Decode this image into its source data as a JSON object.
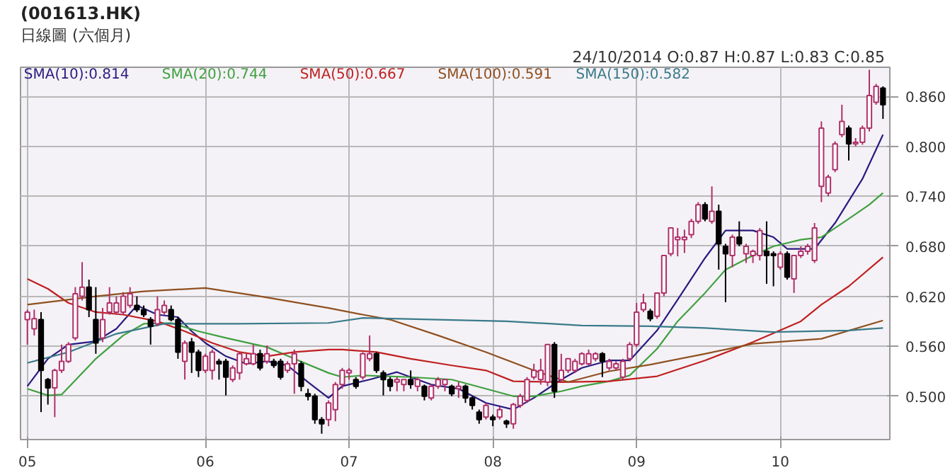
{
  "chart_data": {
    "type": "candlestick",
    "title": "(001613.HK)",
    "subtitle": "日線圖 (六個月)",
    "annotations": [
      "24/10/2014  O:0.87 H:0.87 L:0.83 C:0.85"
    ],
    "categories": [
      "05",
      null,
      null,
      null,
      null,
      null,
      null,
      null,
      null,
      null,
      null,
      null,
      null,
      null,
      null,
      null,
      null,
      null,
      null,
      null,
      null,
      null,
      null,
      null,
      null,
      null,
      "06",
      null,
      null,
      null,
      null,
      null,
      null,
      null,
      null,
      null,
      null,
      null,
      null,
      null,
      null,
      null,
      null,
      null,
      null,
      null,
      null,
      "07",
      null,
      null,
      null,
      null,
      null,
      null,
      null,
      null,
      null,
      null,
      null,
      null,
      null,
      null,
      null,
      null,
      null,
      null,
      null,
      null,
      "08",
      null,
      null,
      null,
      null,
      null,
      null,
      null,
      null,
      null,
      null,
      null,
      null,
      null,
      null,
      null,
      null,
      null,
      null,
      null,
      null,
      "09",
      null,
      null,
      null,
      null,
      null,
      null,
      null,
      null,
      null,
      null,
      null,
      null,
      null,
      null,
      null,
      null,
      null,
      null,
      null,
      null,
      "10",
      null,
      null,
      null,
      null,
      null,
      null,
      null,
      null,
      null,
      null,
      null,
      null,
      null,
      null,
      null
    ],
    "ohlc": [
      [
        0.592,
        0.604,
        0.562,
        0.601
      ],
      [
        0.581,
        0.604,
        0.573,
        0.593
      ],
      [
        0.592,
        0.601,
        0.481,
        0.531
      ],
      [
        0.52,
        0.522,
        0.49,
        0.51
      ],
      [
        0.51,
        0.533,
        0.475,
        0.531
      ],
      [
        0.531,
        0.562,
        0.528,
        0.542
      ],
      [
        0.542,
        0.565,
        0.54,
        0.562
      ],
      [
        0.57,
        0.631,
        0.567,
        0.623
      ],
      [
        0.62,
        0.661,
        0.615,
        0.631
      ],
      [
        0.631,
        0.64,
        0.595,
        0.604
      ],
      [
        0.592,
        0.631,
        0.551,
        0.564
      ],
      [
        0.57,
        0.606,
        0.565,
        0.592
      ],
      [
        0.601,
        0.631,
        0.598,
        0.612
      ],
      [
        0.601,
        0.62,
        0.598,
        0.612
      ],
      [
        0.601,
        0.625,
        0.598,
        0.62
      ],
      [
        0.609,
        0.631,
        0.606,
        0.623
      ],
      [
        0.609,
        0.62,
        0.601,
        0.604
      ],
      [
        0.604,
        0.609,
        0.595,
        0.598
      ],
      [
        0.592,
        0.595,
        0.562,
        0.584
      ],
      [
        0.587,
        0.62,
        0.584,
        0.604
      ],
      [
        0.601,
        0.615,
        0.598,
        0.609
      ],
      [
        0.604,
        0.609,
        0.59,
        0.592
      ],
      [
        0.592,
        0.595,
        0.545,
        0.553
      ],
      [
        0.542,
        0.567,
        0.52,
        0.564
      ],
      [
        0.565,
        0.57,
        0.528,
        0.553
      ],
      [
        0.553,
        0.556,
        0.523,
        0.531
      ],
      [
        0.531,
        0.551,
        0.528,
        0.548
      ],
      [
        0.531,
        0.556,
        0.52,
        0.553
      ],
      [
        0.542,
        0.545,
        0.52,
        0.539
      ],
      [
        0.542,
        0.545,
        0.501,
        0.523
      ],
      [
        0.52,
        0.537,
        0.517,
        0.534
      ],
      [
        0.528,
        0.553,
        0.52,
        0.551
      ],
      [
        0.539,
        0.551,
        0.537,
        0.545
      ],
      [
        0.539,
        0.562,
        0.537,
        0.551
      ],
      [
        0.551,
        0.556,
        0.531,
        0.534
      ],
      [
        0.542,
        0.561,
        0.539,
        0.551
      ],
      [
        0.542,
        0.545,
        0.534,
        0.537
      ],
      [
        0.542,
        0.545,
        0.52,
        0.523
      ],
      [
        0.531,
        0.542,
        0.528,
        0.539
      ],
      [
        0.539,
        0.556,
        0.503,
        0.551
      ],
      [
        0.539,
        0.542,
        0.506,
        0.512
      ],
      [
        0.503,
        0.509,
        0.495,
        0.5
      ],
      [
        0.5,
        0.503,
        0.467,
        0.472
      ],
      [
        0.472,
        0.475,
        0.455,
        0.467
      ],
      [
        0.472,
        0.495,
        0.464,
        0.492
      ],
      [
        0.484,
        0.517,
        0.47,
        0.514
      ],
      [
        0.514,
        0.534,
        0.509,
        0.531
      ],
      [
        0.528,
        0.534,
        0.52,
        0.531
      ],
      [
        0.52,
        0.523,
        0.509,
        0.512
      ],
      [
        0.523,
        0.553,
        0.52,
        0.551
      ],
      [
        0.545,
        0.573,
        0.542,
        0.551
      ],
      [
        0.551,
        0.553,
        0.528,
        0.531
      ],
      [
        0.528,
        0.531,
        0.501,
        0.52
      ],
      [
        0.52,
        0.523,
        0.506,
        0.512
      ],
      [
        0.517,
        0.523,
        0.506,
        0.52
      ],
      [
        0.514,
        0.52,
        0.506,
        0.52
      ],
      [
        0.52,
        0.531,
        0.509,
        0.514
      ],
      [
        0.512,
        0.523,
        0.506,
        0.52
      ],
      [
        0.512,
        0.514,
        0.495,
        0.5
      ],
      [
        0.498,
        0.514,
        0.495,
        0.512
      ],
      [
        0.512,
        0.523,
        0.509,
        0.52
      ],
      [
        0.514,
        0.52,
        0.506,
        0.52
      ],
      [
        0.512,
        0.514,
        0.5,
        0.503
      ],
      [
        0.509,
        0.517,
        0.498,
        0.512
      ],
      [
        0.512,
        0.514,
        0.492,
        0.498
      ],
      [
        0.498,
        0.5,
        0.484,
        0.489
      ],
      [
        0.481,
        0.484,
        0.467,
        0.472
      ],
      [
        0.475,
        0.492,
        0.472,
        0.489
      ],
      [
        0.475,
        0.478,
        0.464,
        0.472
      ],
      [
        0.475,
        0.487,
        0.472,
        0.484
      ],
      [
        0.47,
        0.472,
        0.462,
        0.467
      ],
      [
        0.467,
        0.492,
        0.461,
        0.49
      ],
      [
        0.489,
        0.503,
        0.486,
        0.5
      ],
      [
        0.495,
        0.523,
        0.492,
        0.52
      ],
      [
        0.523,
        0.539,
        0.52,
        0.531
      ],
      [
        0.52,
        0.545,
        0.514,
        0.531
      ],
      [
        0.517,
        0.562,
        0.512,
        0.562
      ],
      [
        0.562,
        0.565,
        0.498,
        0.506
      ],
      [
        0.52,
        0.551,
        0.517,
        0.531
      ],
      [
        0.531,
        0.545,
        0.528,
        0.545
      ],
      [
        0.531,
        0.545,
        0.528,
        0.542
      ],
      [
        0.539,
        0.553,
        0.537,
        0.551
      ],
      [
        0.539,
        0.556,
        0.537,
        0.551
      ],
      [
        0.545,
        0.553,
        0.542,
        0.551
      ],
      [
        0.551,
        0.553,
        0.523,
        0.542
      ],
      [
        0.534,
        0.545,
        0.531,
        0.542
      ],
      [
        0.534,
        0.542,
        0.531,
        0.539
      ],
      [
        0.523,
        0.545,
        0.52,
        0.542
      ],
      [
        0.545,
        0.565,
        0.542,
        0.562
      ],
      [
        0.562,
        0.612,
        0.559,
        0.601
      ],
      [
        0.604,
        0.623,
        0.601,
        0.612
      ],
      [
        0.602,
        0.605,
        0.59,
        0.593
      ],
      [
        0.596,
        0.624,
        0.593,
        0.624
      ],
      [
        0.624,
        0.669,
        0.62,
        0.669
      ],
      [
        0.671,
        0.702,
        0.668,
        0.702
      ],
      [
        0.688,
        0.702,
        0.668,
        0.691
      ],
      [
        0.688,
        0.7,
        0.672,
        0.691
      ],
      [
        0.694,
        0.713,
        0.69,
        0.71
      ],
      [
        0.71,
        0.733,
        0.707,
        0.73
      ],
      [
        0.73,
        0.733,
        0.71,
        0.713
      ],
      [
        0.71,
        0.752,
        0.707,
        0.722
      ],
      [
        0.722,
        0.73,
        0.652,
        0.683
      ],
      [
        0.68,
        0.683,
        0.613,
        0.671
      ],
      [
        0.669,
        0.694,
        0.655,
        0.691
      ],
      [
        0.691,
        0.71,
        0.68,
        0.683
      ],
      [
        0.671,
        0.683,
        0.66,
        0.68
      ],
      [
        0.669,
        0.676,
        0.66,
        0.674
      ],
      [
        0.669,
        0.702,
        0.663,
        0.699
      ],
      [
        0.674,
        0.71,
        0.635,
        0.669
      ],
      [
        0.671,
        0.674,
        0.632,
        0.669
      ],
      [
        0.655,
        0.674,
        0.652,
        0.671
      ],
      [
        0.671,
        0.674,
        0.64,
        0.643
      ],
      [
        0.641,
        0.669,
        0.624,
        0.669
      ],
      [
        0.669,
        0.68,
        0.666,
        0.674
      ],
      [
        0.674,
        0.683,
        0.67,
        0.68
      ],
      [
        0.663,
        0.708,
        0.66,
        0.702
      ],
      [
        0.752,
        0.83,
        0.733,
        0.822
      ],
      [
        0.744,
        0.766,
        0.74,
        0.763
      ],
      [
        0.772,
        0.806,
        0.769,
        0.803
      ],
      [
        0.814,
        0.85,
        0.811,
        0.83
      ],
      [
        0.822,
        0.825,
        0.783,
        0.803
      ],
      [
        0.803,
        0.81,
        0.8,
        0.805
      ],
      [
        0.805,
        0.825,
        0.802,
        0.822
      ],
      [
        0.822,
        0.892,
        0.818,
        0.861
      ],
      [
        0.853,
        0.875,
        0.85,
        0.872
      ],
      [
        0.87,
        0.872,
        0.833,
        0.85
      ]
    ],
    "colors": [
      "#b0306a",
      "#b0306a",
      "#000000",
      "#000000",
      "#b0306a",
      "#b0306a",
      "#b0306a",
      "#b0306a",
      "#b0306a",
      "#000000",
      "#000000",
      "#b0306a",
      "#b0306a",
      "#b0306a",
      "#b0306a",
      "#b0306a",
      "#000000",
      "#000000",
      "#000000",
      "#b0306a",
      "#b0306a",
      "#000000",
      "#000000",
      "#b0306a",
      "#000000",
      "#000000",
      "#b0306a",
      "#b0306a",
      "#000000",
      "#000000",
      "#b0306a",
      "#b0306a",
      "#b0306a",
      "#b0306a",
      "#000000",
      "#b0306a",
      "#000000",
      "#000000",
      "#b0306a",
      "#b0306a",
      "#000000",
      "#000000",
      "#000000",
      "#000000",
      "#b0306a",
      "#b0306a",
      "#b0306a",
      "#b0306a",
      "#000000",
      "#b0306a",
      "#b0306a",
      "#000000",
      "#000000",
      "#000000",
      "#b0306a",
      "#b0306a",
      "#000000",
      "#b0306a",
      "#000000",
      "#b0306a",
      "#b0306a",
      "#b0306a",
      "#000000",
      "#b0306a",
      "#000000",
      "#000000",
      "#000000",
      "#b0306a",
      "#000000",
      "#b0306a",
      "#000000",
      "#b0306a",
      "#b0306a",
      "#b0306a",
      "#b0306a",
      "#b0306a",
      "#b0306a",
      "#000000",
      "#b0306a",
      "#b0306a",
      "#b0306a",
      "#b0306a",
      "#b0306a",
      "#b0306a",
      "#000000",
      "#b0306a",
      "#b0306a",
      "#b0306a",
      "#b0306a",
      "#b0306a",
      "#b0306a",
      "#000000",
      "#b0306a",
      "#b0306a",
      "#b0306a",
      "#b0306a",
      "#b0306a",
      "#b0306a",
      "#b0306a",
      "#000000",
      "#b0306a",
      "#000000",
      "#000000",
      "#b0306a",
      "#000000",
      "#b0306a",
      "#b0306a",
      "#b0306a",
      "#000000",
      "#000000",
      "#b0306a",
      "#000000",
      "#b0306a",
      "#b0306a",
      "#b0306a",
      "#b0306a",
      "#b0306a",
      "#b0306a",
      "#b0306a",
      "#b0306a",
      "#000000",
      "#b0306a",
      "#b0306a",
      "#b0306a",
      "#b0306a",
      "#000000"
    ],
    "series": [
      {
        "name": "SMA(10):0.814",
        "type": "line",
        "color": "#2a1a80",
        "values": [
          0.512,
          null,
          null,
          0.545,
          null,
          null,
          0.562,
          null,
          null,
          null,
          0.566,
          null,
          null,
          0.581,
          null,
          null,
          0.609,
          null,
          null,
          0.598,
          null,
          null,
          0.595,
          null,
          0.578,
          null,
          0.564,
          null,
          null,
          0.548,
          null,
          null,
          0.539,
          null,
          null,
          0.542,
          null,
          null,
          0.537,
          null,
          null,
          0.517,
          null,
          null,
          0.498,
          null,
          0.512,
          null,
          null,
          null,
          0.52,
          null,
          null,
          null,
          0.529,
          null,
          null,
          null,
          null,
          0.514,
          null,
          null,
          null,
          0.509,
          null,
          null,
          null,
          0.492,
          null,
          null,
          null,
          0.484,
          null,
          null,
          0.498,
          null,
          null,
          null,
          0.52,
          null,
          null,
          0.534,
          null,
          null,
          null,
          0.543,
          null,
          null,
          0.543,
          null,
          null,
          null,
          0.579,
          null,
          null,
          0.616,
          null,
          null,
          null,
          0.666,
          null,
          null,
          0.699,
          null,
          null,
          null,
          0.699,
          null,
          null,
          0.691,
          null,
          0.677,
          null,
          null,
          null,
          0.677,
          null,
          null,
          0.708,
          null,
          null,
          null,
          0.761,
          null,
          null,
          0.814
        ]
      },
      {
        "name": "SMA(20):0.744",
        "type": "line",
        "color": "#40a040",
        "values": [
          0.509,
          null,
          null,
          0.501,
          null,
          0.502,
          null,
          null,
          null,
          null,
          0.545,
          null,
          null,
          null,
          0.573,
          null,
          null,
          0.587,
          null,
          null,
          null,
          0.588,
          null,
          null,
          null,
          0.578,
          null,
          null,
          null,
          0.57,
          null,
          null,
          null,
          null,
          null,
          0.559,
          null,
          null,
          null,
          0.545,
          null,
          null,
          null,
          null,
          0.528,
          null,
          0.523,
          null,
          null,
          0.525,
          null,
          null,
          null,
          null,
          null,
          null,
          0.523,
          null,
          null,
          null,
          null,
          null,
          0.52,
          null,
          null,
          null,
          null,
          0.509,
          null,
          null,
          null,
          0.5,
          null,
          null,
          0.5,
          null,
          null,
          null,
          0.506,
          null,
          null,
          0.512,
          null,
          null,
          null,
          0.518,
          null,
          null,
          0.525,
          null,
          null,
          null,
          0.557,
          null,
          null,
          0.59,
          null,
          null,
          null,
          0.624,
          null,
          null,
          0.652,
          null,
          null,
          null,
          0.669,
          null,
          null,
          0.68,
          null,
          null,
          null,
          0.688,
          null,
          null,
          0.691,
          null,
          null,
          null,
          0.713,
          null,
          null,
          0.73,
          null,
          0.744
        ]
      },
      {
        "name": "SMA(50):0.667",
        "type": "line",
        "color": "#c02020",
        "values": [
          0.641,
          null,
          null,
          0.629,
          null,
          null,
          0.612,
          null,
          null,
          null,
          0.601,
          null,
          null,
          null,
          0.598,
          null,
          null,
          null,
          null,
          0.59,
          null,
          null,
          null,
          0.578,
          null,
          null,
          null,
          0.564,
          null,
          null,
          null,
          0.553,
          null,
          null,
          null,
          0.548,
          null,
          null,
          null,
          0.553,
          null,
          null,
          null,
          null,
          0.556,
          null,
          0.556,
          null,
          null,
          null,
          null,
          0.553,
          null,
          null,
          null,
          null,
          0.545,
          null,
          null,
          null,
          null,
          null,
          0.537,
          null,
          null,
          null,
          null,
          0.531,
          null,
          null,
          null,
          0.518,
          null,
          null,
          null,
          null,
          null,
          null,
          0.517,
          null,
          null,
          null,
          null,
          null,
          null,
          0.518,
          null,
          null,
          null,
          null,
          null,
          null,
          0.524,
          null,
          null,
          null,
          null,
          null,
          null,
          0.543,
          null,
          null,
          null,
          null,
          null,
          null,
          0.565,
          null,
          null,
          null,
          null,
          null,
          null,
          0.59,
          null,
          null,
          0.61,
          null,
          null,
          null,
          0.632,
          null,
          null,
          null,
          null,
          0.667
        ]
      },
      {
        "name": "SMA(100):0.591",
        "type": "line",
        "color": "#905020",
        "values": [
          0.61,
          null,
          null,
          null,
          null,
          null,
          null,
          null,
          null,
          null,
          0.62,
          null,
          null,
          null,
          null,
          null,
          null,
          0.626,
          null,
          null,
          null,
          null,
          null,
          null,
          null,
          null,
          0.63,
          null,
          null,
          null,
          null,
          null,
          null,
          null,
          0.62,
          null,
          null,
          null,
          null,
          null,
          null,
          null,
          null,
          null,
          0.606,
          null,
          null,
          null,
          null,
          0.598,
          null,
          null,
          null,
          0.592,
          null,
          null,
          null,
          null,
          null,
          null,
          0.573,
          null,
          null,
          null,
          null,
          null,
          null,
          0.553,
          null,
          null,
          null,
          null,
          null,
          null,
          0.531,
          null,
          null,
          null,
          null,
          0.517,
          null,
          null,
          null,
          null,
          null,
          0.53,
          null,
          null,
          null,
          null,
          null,
          0.538,
          null,
          null,
          null,
          null,
          null,
          null,
          null,
          0.551,
          null,
          null,
          null,
          null,
          null,
          null,
          0.563,
          null,
          null,
          null,
          null,
          null,
          null,
          null,
          null,
          null,
          0.569,
          null,
          null,
          null,
          null,
          null,
          null,
          null,
          null,
          0.591
        ]
      },
      {
        "name": "SMA(150):0.582",
        "type": "line",
        "color": "#3a7a8a",
        "values": [
          0.54,
          null,
          null,
          null,
          null,
          null,
          0.553,
          null,
          null,
          null,
          null,
          null,
          null,
          0.575,
          null,
          null,
          null,
          null,
          null,
          null,
          0.587,
          null,
          null,
          null,
          null,
          null,
          null,
          null,
          null,
          null,
          null,
          0.587,
          null,
          null,
          null,
          null,
          null,
          null,
          null,
          null,
          null,
          null,
          null,
          null,
          0.588,
          null,
          null,
          null,
          null,
          0.594,
          null,
          null,
          null,
          null,
          null,
          null,
          null,
          null,
          null,
          null,
          0.592,
          null,
          null,
          null,
          null,
          null,
          null,
          null,
          null,
          null,
          0.59,
          null,
          null,
          null,
          null,
          null,
          null,
          null,
          null,
          null,
          null,
          0.585,
          null,
          null,
          null,
          null,
          null,
          null,
          null,
          null,
          null,
          0.584,
          null,
          null,
          null,
          null,
          null,
          null,
          null,
          0.582,
          null,
          null,
          null,
          null,
          null,
          null,
          null,
          null,
          null,
          0.577,
          null,
          null,
          null,
          null,
          null,
          null,
          null,
          null,
          null,
          null,
          0.579,
          null,
          null,
          null,
          null,
          0.582
        ]
      }
    ],
    "ylim": [
      0.448,
      0.895
    ],
    "yticks": [
      {
        "value": 0.5,
        "label": "0.500"
      },
      {
        "value": 0.56,
        "label": "0.560"
      },
      {
        "value": 0.62,
        "label": "0.620"
      },
      {
        "value": 0.68,
        "label": "0.680"
      },
      {
        "value": 0.74,
        "label": "0.740"
      },
      {
        "value": 0.8,
        "label": "0.800"
      },
      {
        "value": 0.86,
        "label": "0.860"
      }
    ],
    "grid": true,
    "legend": "top left"
  }
}
